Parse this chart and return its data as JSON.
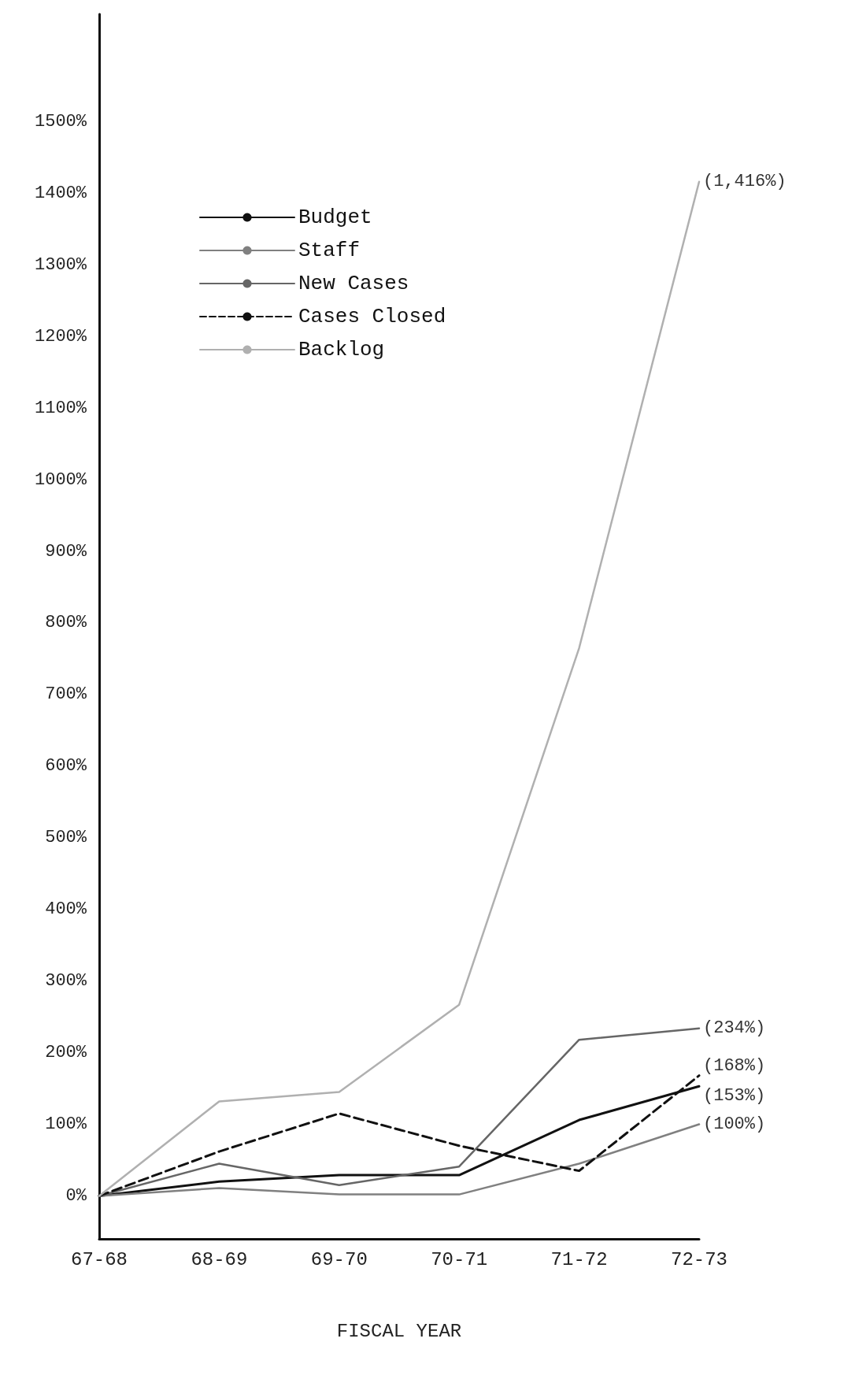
{
  "chart_data": {
    "type": "line",
    "xlabel": "FISCAL YEAR",
    "categories": [
      "67-68",
      "68-69",
      "69-70",
      "70-71",
      "71-72",
      "72-73"
    ],
    "ylim": [
      -60,
      1650
    ],
    "yticks": [
      {
        "value": 0,
        "label": "0%"
      },
      {
        "value": 100,
        "label": "100%"
      },
      {
        "value": 200,
        "label": "200%"
      },
      {
        "value": 300,
        "label": "300%"
      },
      {
        "value": 400,
        "label": "400%"
      },
      {
        "value": 500,
        "label": "500%"
      },
      {
        "value": 600,
        "label": "600%"
      },
      {
        "value": 700,
        "label": "700%"
      },
      {
        "value": 800,
        "label": "800%"
      },
      {
        "value": 900,
        "label": "900%"
      },
      {
        "value": 1000,
        "label": "1000%"
      },
      {
        "value": 1100,
        "label": "1100%"
      },
      {
        "value": 1200,
        "label": "1200%"
      },
      {
        "value": 1300,
        "label": "1300%"
      },
      {
        "value": 1400,
        "label": "1400%"
      },
      {
        "value": 1500,
        "label": "1500%"
      }
    ],
    "grid": false,
    "legend": "top left",
    "marker": "none",
    "series": [
      {
        "name": "Budget",
        "color": "#111111",
        "line_style": "solid",
        "values": [
          0,
          20,
          29,
          29,
          106,
          153
        ],
        "value_labels": [
          null,
          null,
          null,
          null,
          null,
          "(153%)"
        ]
      },
      {
        "name": "Staff",
        "color": "#808080",
        "line_style": "solid",
        "values": [
          0,
          11,
          2,
          2,
          45,
          100
        ],
        "value_labels": [
          null,
          null,
          null,
          null,
          null,
          "(100%)"
        ]
      },
      {
        "name": "New Cases",
        "color": "#666666",
        "line_style": "solid",
        "values": [
          0,
          45,
          15,
          41,
          218,
          234
        ],
        "value_labels": [
          null,
          null,
          null,
          null,
          null,
          "(234%)"
        ]
      },
      {
        "name": "Cases Closed",
        "color": "#111111",
        "line_style": "dashed",
        "values": [
          0,
          62,
          115,
          70,
          35,
          168
        ],
        "value_labels": [
          null,
          null,
          null,
          null,
          null,
          "(168%)"
        ]
      },
      {
        "name": "Backlog",
        "color": "#b0b0b0",
        "line_style": "solid",
        "values": [
          0,
          132,
          145,
          267,
          765,
          1416
        ],
        "value_labels": [
          null,
          null,
          null,
          null,
          null,
          "(1,416%)"
        ]
      }
    ]
  }
}
